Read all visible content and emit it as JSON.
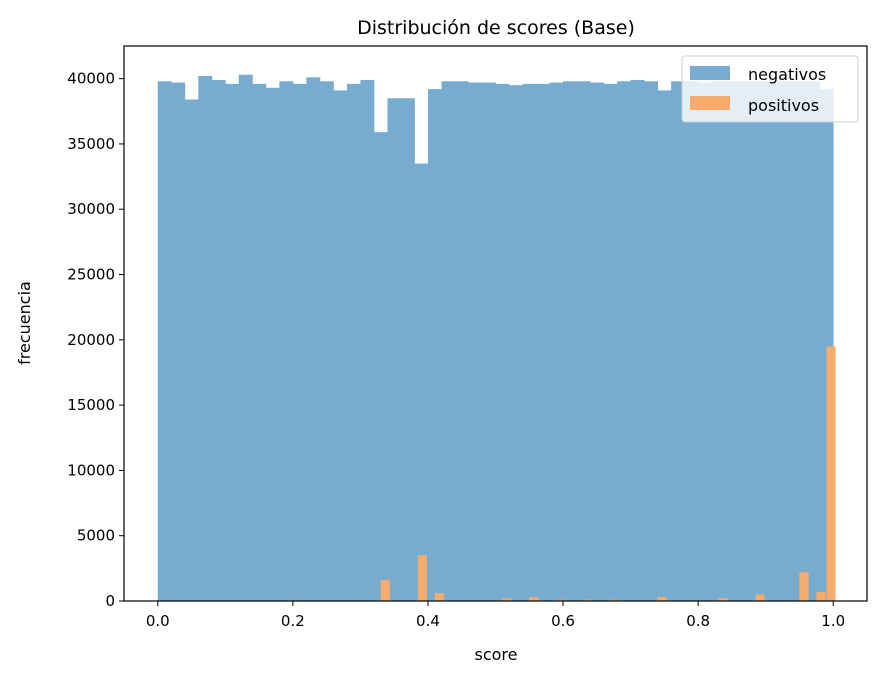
{
  "chart_data": {
    "type": "bar",
    "title": "Distribución de scores (Base)",
    "xlabel": "score",
    "ylabel": "frecuencia",
    "xlim": [
      -0.05,
      1.05
    ],
    "ylim": [
      0,
      42500
    ],
    "xticks": [
      0.0,
      0.2,
      0.4,
      0.6,
      0.8,
      1.0
    ],
    "xtick_labels": [
      "0.0",
      "0.2",
      "0.4",
      "0.6",
      "0.8",
      "1.0"
    ],
    "yticks": [
      0,
      5000,
      10000,
      15000,
      20000,
      25000,
      30000,
      35000,
      40000
    ],
    "ytick_labels": [
      "0",
      "5000",
      "10000",
      "15000",
      "20000",
      "25000",
      "30000",
      "35000",
      "40000"
    ],
    "grid": false,
    "legend_position": "top-right",
    "series": [
      {
        "name": "negativos",
        "color": "#77acd0",
        "bin_start": 0.0,
        "bin_width": 0.02,
        "values": [
          39800,
          39700,
          38400,
          40200,
          39900,
          39600,
          40300,
          39600,
          39300,
          39800,
          39600,
          40100,
          39800,
          39100,
          39600,
          39900,
          35900,
          38500,
          38500,
          33500,
          39200,
          39800,
          39800,
          39700,
          39700,
          39600,
          39500,
          39600,
          39600,
          39700,
          39800,
          39800,
          39700,
          39600,
          39800,
          39900,
          39800,
          39100,
          39800,
          39800,
          39700,
          39800,
          39800,
          39800,
          39800,
          39800,
          39800,
          39800,
          39800,
          39200
        ]
      },
      {
        "name": "positivos",
        "color": "#f7ab6c",
        "bin_start": 0.0,
        "bin_width": 0.0135,
        "bins": [
          {
            "x": 0.33,
            "value": 1600
          },
          {
            "x": 0.385,
            "value": 3500
          },
          {
            "x": 0.41,
            "value": 600
          },
          {
            "x": 0.51,
            "value": 200
          },
          {
            "x": 0.55,
            "value": 300
          },
          {
            "x": 0.59,
            "value": 100
          },
          {
            "x": 0.63,
            "value": 100
          },
          {
            "x": 0.67,
            "value": 100
          },
          {
            "x": 0.74,
            "value": 300
          },
          {
            "x": 0.83,
            "value": 200
          },
          {
            "x": 0.885,
            "value": 500
          },
          {
            "x": 0.95,
            "value": 2200
          },
          {
            "x": 0.975,
            "value": 700
          },
          {
            "x": 0.99,
            "value": 19500
          }
        ]
      }
    ]
  }
}
